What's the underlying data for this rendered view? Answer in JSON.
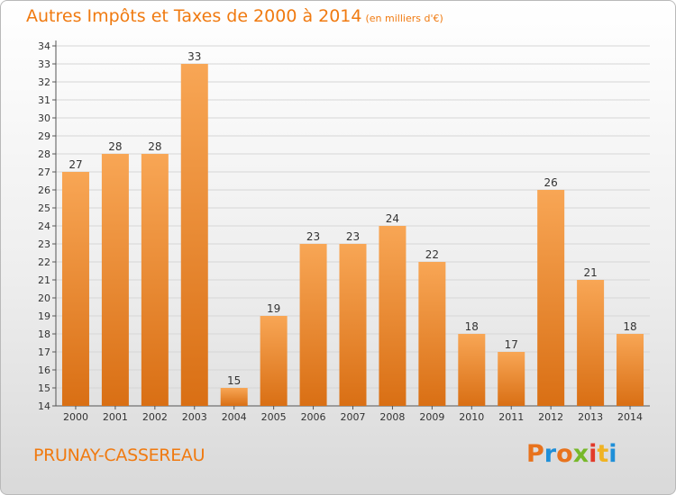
{
  "header": {
    "title": "Autres Impôts et Taxes de 2000 à 2014",
    "unit": "(en milliers d'€)"
  },
  "footer": {
    "commune": "PRUNAY-CASSEREAU",
    "brand": "Proxiti",
    "brand_colors": [
      "#e8731d",
      "#1f8fd8",
      "#e8731d",
      "#77b82a",
      "#e23a2a",
      "#f0b323",
      "#1f8fd8"
    ]
  },
  "colors": {
    "accent": "#f07a10",
    "bar_top": "#f8a655",
    "bar_bottom": "#d96f14"
  },
  "chart_data": {
    "type": "bar",
    "title": "Autres Impôts et Taxes de 2000 à 2014",
    "subtitle": "(en milliers d'€)",
    "categories": [
      "2000",
      "2001",
      "2002",
      "2003",
      "2004",
      "2005",
      "2006",
      "2007",
      "2008",
      "2009",
      "2010",
      "2011",
      "2012",
      "2013",
      "2014"
    ],
    "values": [
      27,
      28,
      28,
      33,
      15,
      19,
      23,
      23,
      24,
      22,
      18,
      17,
      26,
      21,
      18
    ],
    "ylim": [
      14,
      34
    ],
    "yticks": [
      14,
      15,
      16,
      17,
      18,
      19,
      20,
      21,
      22,
      23,
      24,
      25,
      26,
      27,
      28,
      29,
      30,
      31,
      32,
      33,
      34
    ],
    "grid": true,
    "legend": "none"
  }
}
